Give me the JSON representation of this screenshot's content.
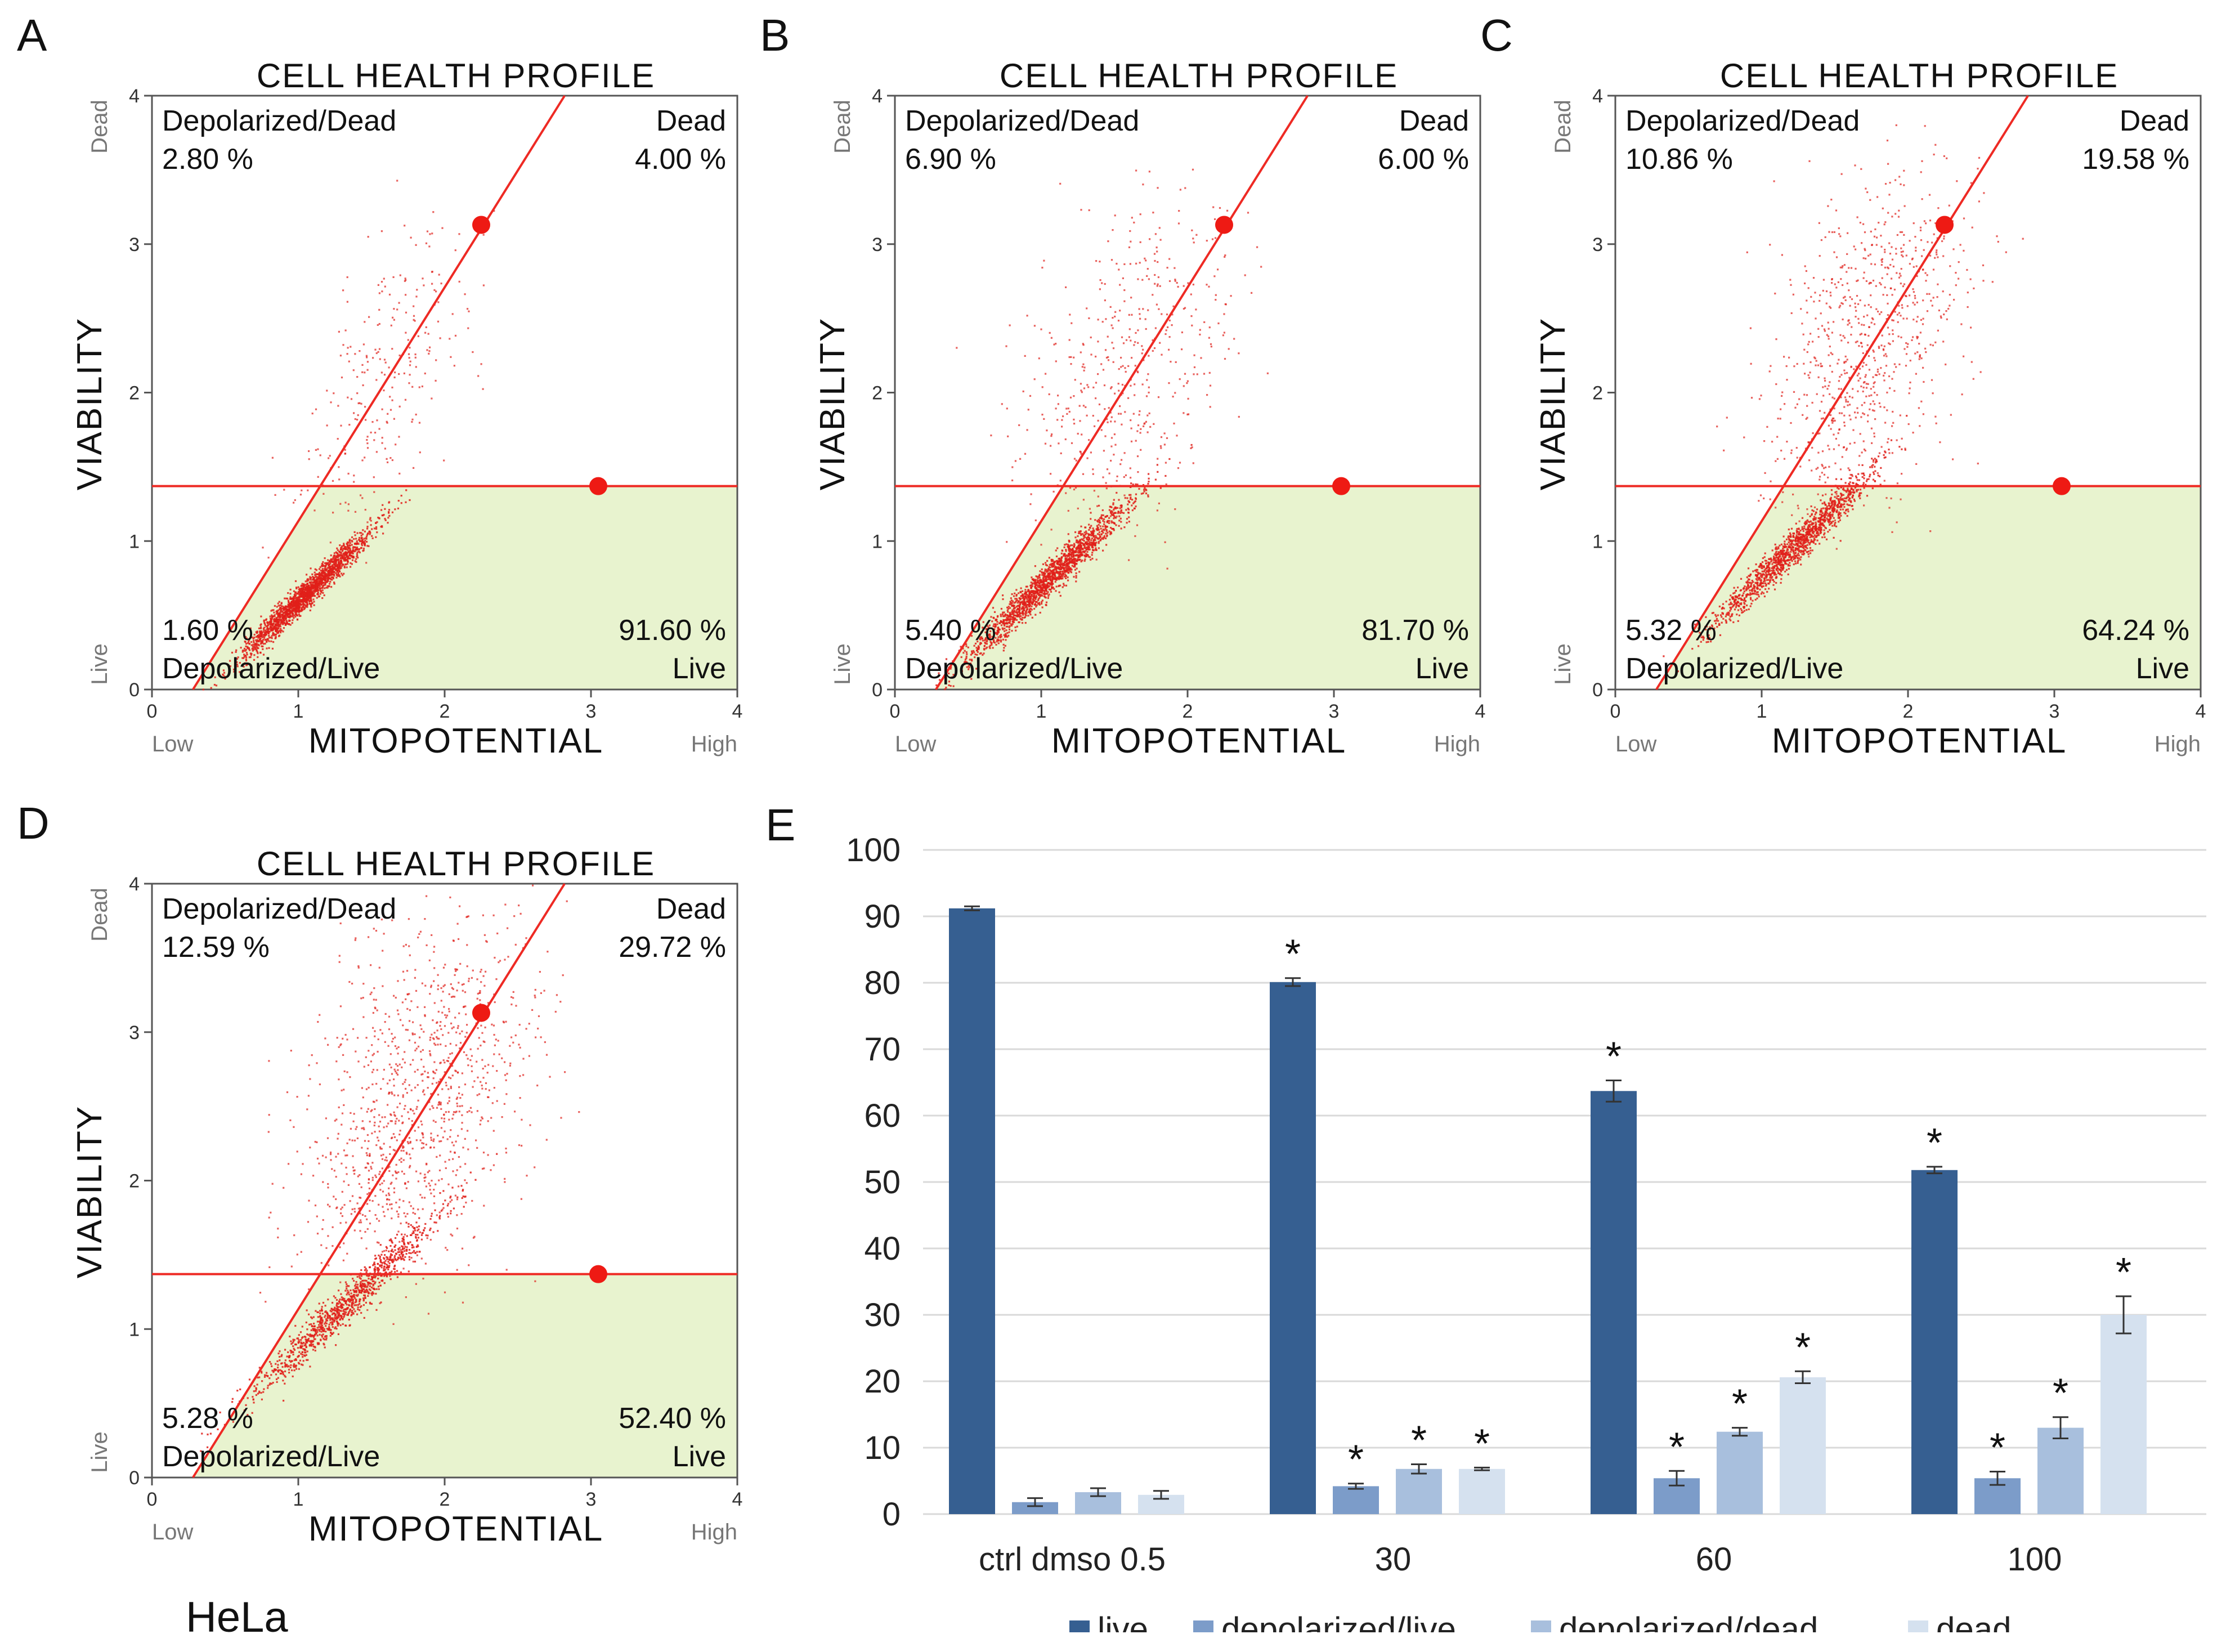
{
  "panels": [
    {
      "letter": "A",
      "title": "CELL HEALTH PROFILE",
      "quadrants": {
        "top_left": {
          "label": "Depolarized/Dead",
          "value": "2.80 %"
        },
        "top_right": {
          "label": "Dead",
          "value": "4.00 %"
        },
        "bottom_left": {
          "label": "Depolarized/Live",
          "value": "1.60 %"
        },
        "bottom_right": {
          "label": "Live",
          "value": "91.60 %"
        }
      },
      "cloud": {
        "cx": 1.05,
        "cy": 0.65,
        "spread": 0.26,
        "tail": 0.12
      }
    },
    {
      "letter": "B",
      "title": "CELL HEALTH PROFILE",
      "quadrants": {
        "top_left": {
          "label": "Depolarized/Dead",
          "value": "6.90 %"
        },
        "top_right": {
          "label": "Dead",
          "value": "6.00 %"
        },
        "bottom_left": {
          "label": "Depolarized/Live",
          "value": "5.40 %"
        },
        "bottom_right": {
          "label": "Live",
          "value": "81.70 %"
        }
      },
      "cloud": {
        "cx": 1.05,
        "cy": 0.75,
        "spread": 0.34,
        "tail": 0.22
      }
    },
    {
      "letter": "C",
      "title": "CELL HEALTH PROFILE",
      "quadrants": {
        "top_left": {
          "label": "Depolarized/Dead",
          "value": "10.86 %"
        },
        "top_right": {
          "label": "Dead",
          "value": "19.58 %"
        },
        "bottom_left": {
          "label": "Depolarized/Live",
          "value": "5.32 %"
        },
        "bottom_right": {
          "label": "Live",
          "value": "64.24 %"
        }
      },
      "cloud": {
        "cx": 1.2,
        "cy": 0.95,
        "spread": 0.34,
        "tail": 0.38
      }
    },
    {
      "letter": "D",
      "title": "CELL HEALTH PROFILE",
      "quadrants": {
        "top_left": {
          "label": "Depolarized/Dead",
          "value": "12.59 %"
        },
        "top_right": {
          "label": "Dead",
          "value": "29.72 %"
        },
        "bottom_left": {
          "label": "Depolarized/Live",
          "value": "5.28 %"
        },
        "bottom_right": {
          "label": "Live",
          "value": "52.40 %"
        }
      },
      "cloud": {
        "cx": 1.3,
        "cy": 1.15,
        "spread": 0.38,
        "tail": 0.5
      }
    }
  ],
  "scatter_axes": {
    "x_title": "MITOPOTENTIAL",
    "y_title": "VIABILITY",
    "x_low": "Low",
    "x_high": "High",
    "y_low": "Live",
    "y_high": "Dead",
    "ticks": [
      "0",
      "1",
      "2",
      "3",
      "4"
    ],
    "range": [
      0,
      4
    ],
    "gate_viability": 1.37,
    "diagonal": {
      "x0": 0.28,
      "y0": 0.0,
      "x1": 2.82,
      "y1": 4.0
    },
    "marker_diag": {
      "x": 2.25,
      "y": 3.13
    },
    "marker_horiz": {
      "x": 3.05,
      "y": 1.37
    }
  },
  "panel_e_letter": "E",
  "cell_line": "HeLa",
  "chart_data": {
    "type": "bar",
    "title": "",
    "xlabel": "",
    "ylabel": "",
    "ylim": [
      0,
      100
    ],
    "yticks": [
      "0",
      "10",
      "20",
      "30",
      "40",
      "50",
      "60",
      "70",
      "80",
      "90",
      "100"
    ],
    "categories": [
      "ctrl dmso 0.5",
      "30",
      "60",
      "100"
    ],
    "series": [
      {
        "name": "live",
        "color": "#365f91",
        "values": [
          91.2,
          80.1,
          63.7,
          51.8
        ],
        "errors": [
          0.3,
          0.6,
          1.6,
          0.5
        ],
        "significant": [
          false,
          true,
          true,
          true
        ]
      },
      {
        "name": "depolarized/live",
        "color": "#7c9cc9",
        "values": [
          1.8,
          4.2,
          5.4,
          5.4
        ],
        "errors": [
          0.6,
          0.4,
          1.1,
          1.0
        ],
        "significant": [
          false,
          true,
          true,
          true
        ]
      },
      {
        "name": "depolarized/dead",
        "color": "#a8bfdd",
        "values": [
          3.3,
          6.8,
          12.4,
          13.0
        ],
        "errors": [
          0.6,
          0.7,
          0.6,
          1.6
        ],
        "significant": [
          false,
          true,
          true,
          true
        ]
      },
      {
        "name": "dead",
        "color": "#d5e1ef",
        "values": [
          2.9,
          6.8,
          20.6,
          30.0
        ],
        "errors": [
          0.6,
          0.2,
          0.9,
          2.8
        ],
        "significant": [
          false,
          true,
          true,
          true
        ]
      }
    ],
    "significance_marker": "*",
    "legend_position": "bottom"
  }
}
